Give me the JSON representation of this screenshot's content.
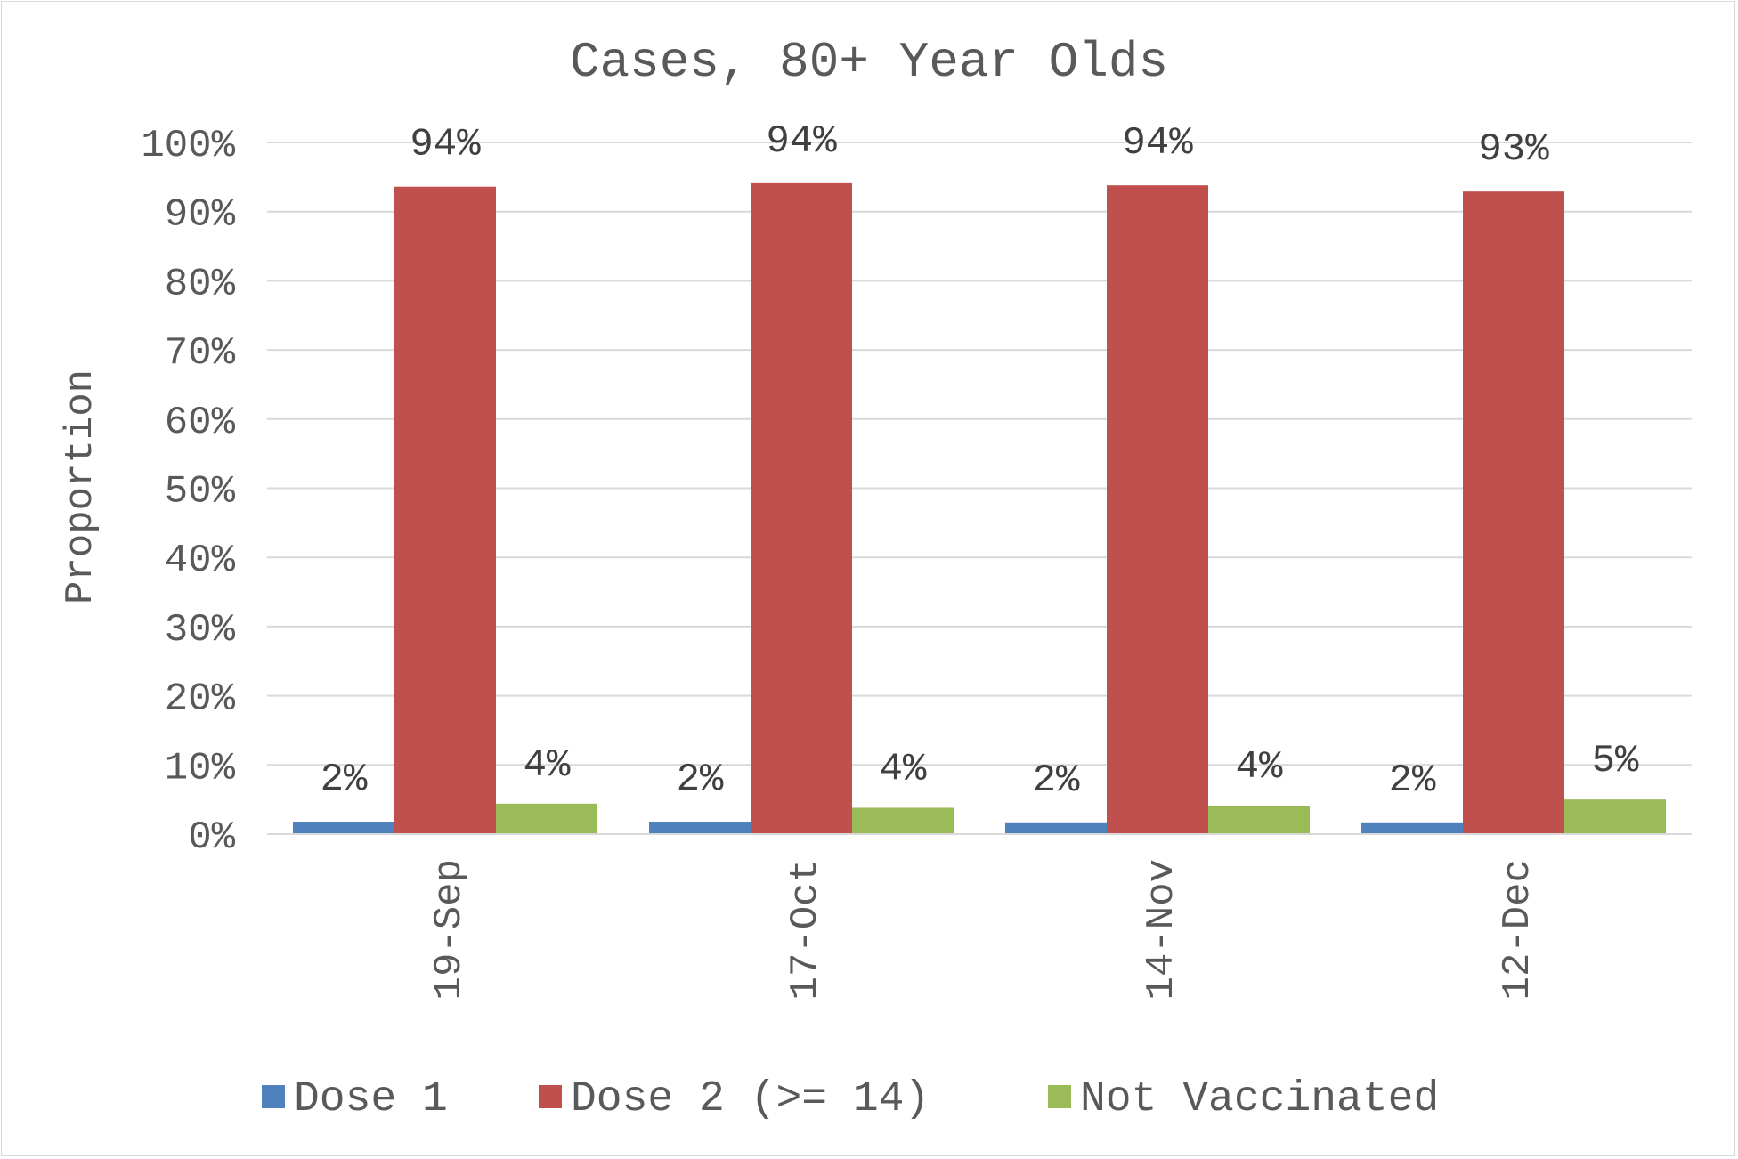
{
  "chart_data": {
    "type": "bar",
    "title": "Cases, 80+ Year Olds",
    "xlabel": "",
    "ylabel": "Proportion",
    "ylim": [
      0,
      100
    ],
    "y_ticks": [
      "0%",
      "10%",
      "20%",
      "30%",
      "40%",
      "50%",
      "60%",
      "70%",
      "80%",
      "90%",
      "100%"
    ],
    "grid": true,
    "legend_position": "bottom",
    "categories": [
      "19-Sep",
      "17-Oct",
      "14-Nov",
      "12-Dec"
    ],
    "series": [
      {
        "name": "Dose 1",
        "color": "#4f81bd",
        "values": [
          1.8,
          1.8,
          1.7,
          1.7
        ],
        "labels": [
          "2%",
          "2%",
          "2%",
          "2%"
        ]
      },
      {
        "name": "Dose 2 (>= 14)",
        "color": "#c0504d",
        "values": [
          93.6,
          94.1,
          93.8,
          92.9
        ],
        "labels": [
          "94%",
          "94%",
          "94%",
          "93%"
        ]
      },
      {
        "name": "Not Vaccinated",
        "color": "#9bbb59",
        "values": [
          4.4,
          3.8,
          4.1,
          5.0
        ],
        "labels": [
          "4%",
          "4%",
          "4%",
          "5%"
        ]
      }
    ]
  }
}
